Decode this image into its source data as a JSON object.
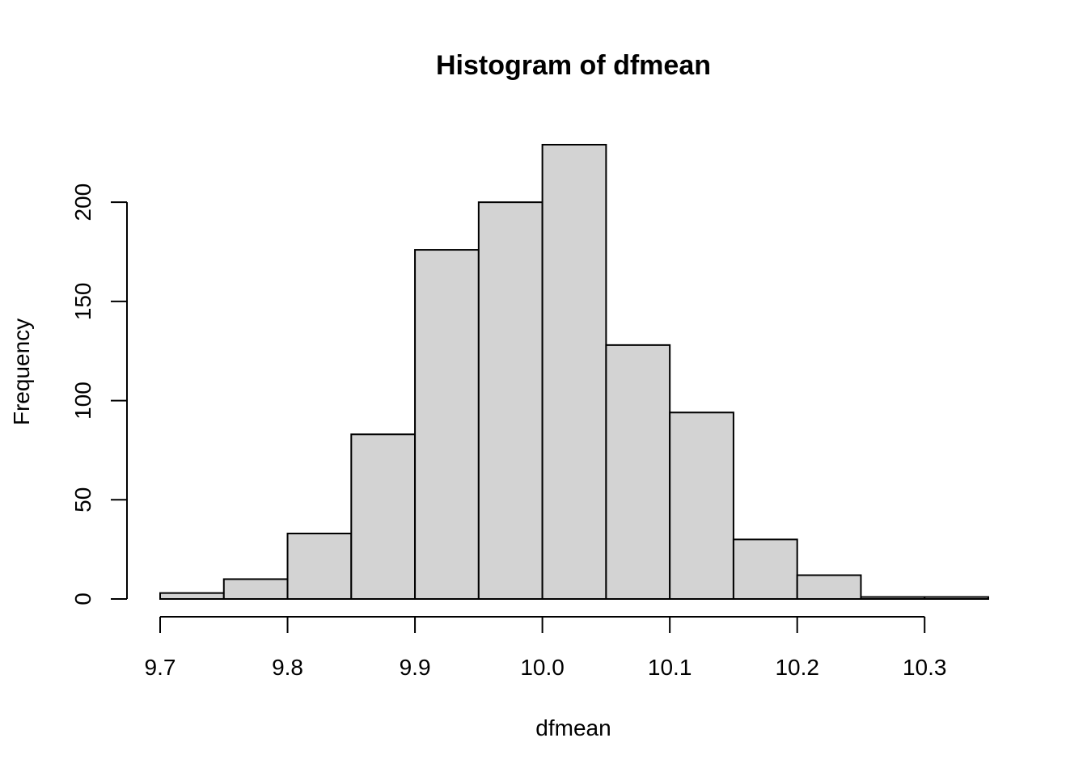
{
  "chart_data": {
    "type": "bar",
    "title": "Histogram of dfmean",
    "xlabel": "dfmean",
    "ylabel": "Frequency",
    "bins": [
      {
        "x0": 9.7,
        "x1": 9.75,
        "count": 3
      },
      {
        "x0": 9.75,
        "x1": 9.8,
        "count": 10
      },
      {
        "x0": 9.8,
        "x1": 9.85,
        "count": 33
      },
      {
        "x0": 9.85,
        "x1": 9.9,
        "count": 83
      },
      {
        "x0": 9.9,
        "x1": 9.95,
        "count": 176
      },
      {
        "x0": 9.95,
        "x1": 10.0,
        "count": 200
      },
      {
        "x0": 10.0,
        "x1": 10.05,
        "count": 229
      },
      {
        "x0": 10.05,
        "x1": 10.1,
        "count": 128
      },
      {
        "x0": 10.1,
        "x1": 10.15,
        "count": 94
      },
      {
        "x0": 10.15,
        "x1": 10.2,
        "count": 30
      },
      {
        "x0": 10.2,
        "x1": 10.25,
        "count": 12
      },
      {
        "x0": 10.25,
        "x1": 10.3,
        "count": 1
      },
      {
        "x0": 10.3,
        "x1": 10.35,
        "count": 1
      }
    ],
    "xticks": [
      9.7,
      9.8,
      9.9,
      10.0,
      10.1,
      10.2,
      10.3
    ],
    "xtick_labels": [
      "9.7",
      "9.8",
      "9.9",
      "10.0",
      "10.1",
      "10.2",
      "10.3"
    ],
    "yticks": [
      0,
      50,
      100,
      150,
      200
    ],
    "ytick_labels": [
      "0",
      "50",
      "100",
      "150",
      "200"
    ],
    "xlim": [
      9.7,
      10.35
    ],
    "ylim": [
      0,
      229
    ],
    "grid": false,
    "colors": {
      "bar_fill": "#d3d3d3",
      "bar_stroke": "#000000"
    }
  }
}
